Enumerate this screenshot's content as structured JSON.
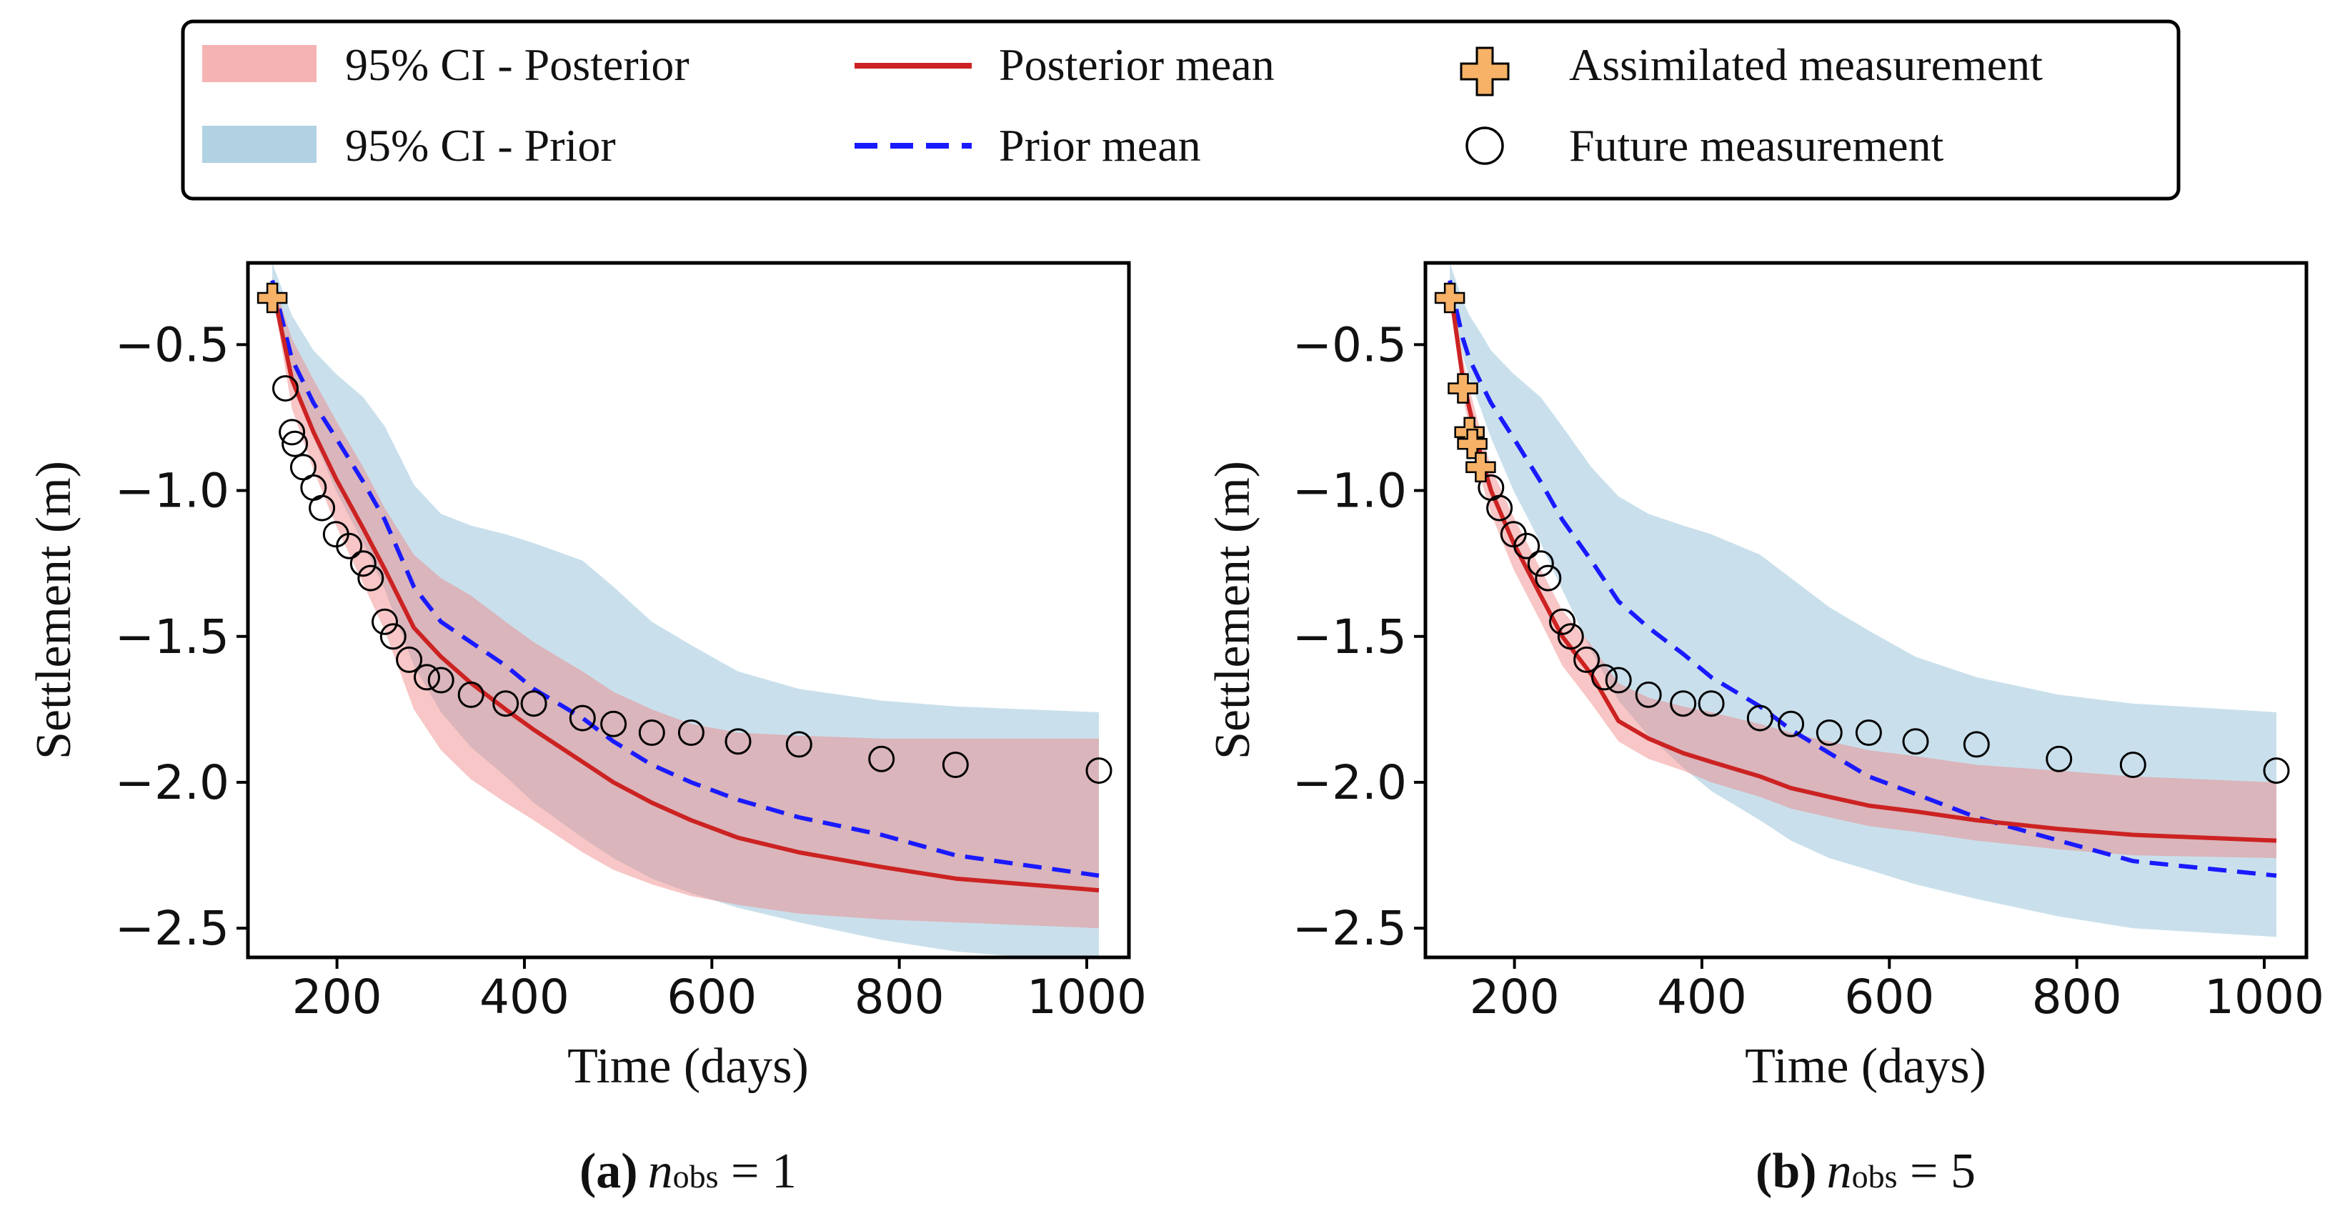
{
  "legend": {
    "ci_posterior": "95% CI - Posterior",
    "ci_prior": "95% CI - Prior",
    "posterior_mean": "Posterior mean",
    "prior_mean": "Prior mean",
    "assimilated": "Assimilated measurement",
    "future": "Future measurement"
  },
  "colors": {
    "posterior_line": "#cc2222",
    "prior_line": "#1a1aff",
    "posterior_band": "#f08080",
    "prior_band": "#9cc7dc",
    "assimilated_marker": "#f7b267"
  },
  "chart_data": [
    {
      "type": "line",
      "caption_letter": "(a)",
      "caption_var": "n",
      "caption_sub": "obs",
      "caption_eq": " = 1",
      "xlabel": "Time (days)",
      "ylabel": "Settlement (m)",
      "xlim": [
        105,
        1045
      ],
      "ylim": [
        -2.6,
        -0.22
      ],
      "xticks": [
        200,
        400,
        600,
        800,
        1000
      ],
      "xtick_labels": [
        "200",
        "400",
        "600",
        "800",
        "1000"
      ],
      "yticks": [
        -0.5,
        -1.0,
        -1.5,
        -2.0,
        -2.5
      ],
      "ytick_labels": [
        "−0.5",
        "−1.0",
        "−1.5",
        "−2.0",
        "−2.5"
      ],
      "t": [
        131,
        152,
        175,
        199,
        228,
        251,
        282,
        311,
        343,
        380,
        410,
        462,
        495,
        536,
        578,
        628,
        693,
        781,
        860,
        1013
      ],
      "prior_mean": [
        -0.28,
        -0.55,
        -0.7,
        -0.82,
        -0.97,
        -1.1,
        -1.33,
        -1.45,
        -1.52,
        -1.6,
        -1.68,
        -1.78,
        -1.86,
        -1.94,
        -2.0,
        -2.06,
        -2.12,
        -2.18,
        -2.25,
        -2.32
      ],
      "prior_lower": [
        -0.34,
        -0.62,
        -0.82,
        -1.0,
        -1.18,
        -1.34,
        -1.6,
        -1.76,
        -1.88,
        -1.98,
        -2.07,
        -2.19,
        -2.26,
        -2.33,
        -2.38,
        -2.43,
        -2.48,
        -2.54,
        -2.58,
        -2.62
      ],
      "prior_upper": [
        -0.22,
        -0.4,
        -0.52,
        -0.6,
        -0.68,
        -0.78,
        -0.98,
        -1.08,
        -1.12,
        -1.15,
        -1.18,
        -1.24,
        -1.33,
        -1.45,
        -1.53,
        -1.62,
        -1.68,
        -1.72,
        -1.74,
        -1.76
      ],
      "posterior_mean": [
        -0.3,
        -0.62,
        -0.8,
        -0.96,
        -1.13,
        -1.27,
        -1.47,
        -1.57,
        -1.66,
        -1.75,
        -1.82,
        -1.93,
        -2.0,
        -2.07,
        -2.13,
        -2.19,
        -2.24,
        -2.29,
        -2.33,
        -2.37
      ],
      "posterior_lower": [
        -0.32,
        -0.72,
        -0.93,
        -1.12,
        -1.32,
        -1.48,
        -1.75,
        -1.89,
        -1.99,
        -2.07,
        -2.13,
        -2.24,
        -2.3,
        -2.35,
        -2.39,
        -2.42,
        -2.45,
        -2.47,
        -2.48,
        -2.5
      ],
      "posterior_upper": [
        -0.27,
        -0.48,
        -0.62,
        -0.76,
        -0.92,
        -1.06,
        -1.22,
        -1.3,
        -1.36,
        -1.45,
        -1.52,
        -1.62,
        -1.69,
        -1.75,
        -1.8,
        -1.83,
        -1.84,
        -1.85,
        -1.85,
        -1.85
      ],
      "assimilated": [
        [
          131,
          -0.34
        ]
      ],
      "future": [
        [
          145,
          -0.65
        ],
        [
          152,
          -0.8
        ],
        [
          155,
          -0.84
        ],
        [
          164,
          -0.92
        ],
        [
          175,
          -0.99
        ],
        [
          184,
          -1.06
        ],
        [
          199,
          -1.15
        ],
        [
          213,
          -1.19
        ],
        [
          228,
          -1.25
        ],
        [
          236,
          -1.3
        ],
        [
          251,
          -1.45
        ],
        [
          260,
          -1.5
        ],
        [
          277,
          -1.58
        ],
        [
          296,
          -1.64
        ],
        [
          311,
          -1.65
        ],
        [
          343,
          -1.7
        ],
        [
          380,
          -1.73
        ],
        [
          410,
          -1.73
        ],
        [
          462,
          -1.78
        ],
        [
          495,
          -1.8
        ],
        [
          536,
          -1.83
        ],
        [
          578,
          -1.83
        ],
        [
          628,
          -1.86
        ],
        [
          693,
          -1.87
        ],
        [
          781,
          -1.92
        ],
        [
          860,
          -1.94
        ],
        [
          1013,
          -1.96
        ]
      ]
    },
    {
      "type": "line",
      "caption_letter": "(b)",
      "caption_var": "n",
      "caption_sub": "obs",
      "caption_eq": " = 5",
      "xlabel": "Time (days)",
      "ylabel": "Settlement (m)",
      "xlim": [
        105,
        1045
      ],
      "ylim": [
        -2.6,
        -0.22
      ],
      "xticks": [
        200,
        400,
        600,
        800,
        1000
      ],
      "xtick_labels": [
        "200",
        "400",
        "600",
        "800",
        "1000"
      ],
      "yticks": [
        -0.5,
        -1.0,
        -1.5,
        -2.0,
        -2.5
      ],
      "ytick_labels": [
        "−0.5",
        "−1.0",
        "−1.5",
        "−2.0",
        "−2.5"
      ],
      "t": [
        131,
        145,
        152,
        164,
        175,
        199,
        228,
        251,
        282,
        311,
        343,
        380,
        410,
        462,
        495,
        536,
        578,
        628,
        693,
        781,
        860,
        1013
      ],
      "prior_mean": [
        -0.28,
        -0.48,
        -0.55,
        -0.63,
        -0.7,
        -0.82,
        -0.97,
        -1.1,
        -1.24,
        -1.38,
        -1.47,
        -1.56,
        -1.64,
        -1.74,
        -1.82,
        -1.9,
        -1.98,
        -2.04,
        -2.12,
        -2.2,
        -2.27,
        -2.32
      ],
      "prior_lower": [
        -0.34,
        -0.54,
        -0.62,
        -0.72,
        -0.82,
        -1.0,
        -1.18,
        -1.34,
        -1.55,
        -1.72,
        -1.84,
        -1.95,
        -2.03,
        -2.13,
        -2.2,
        -2.26,
        -2.3,
        -2.35,
        -2.4,
        -2.46,
        -2.5,
        -2.53
      ],
      "prior_upper": [
        -0.22,
        -0.35,
        -0.4,
        -0.46,
        -0.52,
        -0.6,
        -0.68,
        -0.78,
        -0.92,
        -1.02,
        -1.08,
        -1.12,
        -1.15,
        -1.22,
        -1.3,
        -1.4,
        -1.48,
        -1.57,
        -1.64,
        -1.7,
        -1.73,
        -1.76
      ],
      "posterior_mean": [
        -0.3,
        -0.62,
        -0.72,
        -0.88,
        -1.0,
        -1.18,
        -1.36,
        -1.5,
        -1.63,
        -1.79,
        -1.85,
        -1.9,
        -1.93,
        -1.98,
        -2.02,
        -2.05,
        -2.08,
        -2.1,
        -2.13,
        -2.16,
        -2.18,
        -2.2
      ],
      "posterior_lower": [
        -0.32,
        -0.68,
        -0.79,
        -0.96,
        -1.08,
        -1.27,
        -1.45,
        -1.6,
        -1.73,
        -1.86,
        -1.92,
        -1.96,
        -2.0,
        -2.05,
        -2.09,
        -2.12,
        -2.15,
        -2.17,
        -2.2,
        -2.23,
        -2.25,
        -2.26
      ],
      "posterior_upper": [
        -0.27,
        -0.55,
        -0.65,
        -0.8,
        -0.92,
        -1.09,
        -1.27,
        -1.41,
        -1.53,
        -1.66,
        -1.71,
        -1.74,
        -1.76,
        -1.8,
        -1.83,
        -1.86,
        -1.89,
        -1.91,
        -1.94,
        -1.96,
        -1.98,
        -2.0
      ],
      "assimilated": [
        [
          131,
          -0.34
        ],
        [
          145,
          -0.65
        ],
        [
          152,
          -0.8
        ],
        [
          155,
          -0.84
        ],
        [
          164,
          -0.92
        ]
      ],
      "future": [
        [
          175,
          -0.99
        ],
        [
          184,
          -1.06
        ],
        [
          199,
          -1.15
        ],
        [
          213,
          -1.19
        ],
        [
          228,
          -1.25
        ],
        [
          236,
          -1.3
        ],
        [
          251,
          -1.45
        ],
        [
          260,
          -1.5
        ],
        [
          277,
          -1.58
        ],
        [
          296,
          -1.64
        ],
        [
          311,
          -1.65
        ],
        [
          343,
          -1.7
        ],
        [
          380,
          -1.73
        ],
        [
          410,
          -1.73
        ],
        [
          462,
          -1.78
        ],
        [
          495,
          -1.8
        ],
        [
          536,
          -1.83
        ],
        [
          578,
          -1.83
        ],
        [
          628,
          -1.86
        ],
        [
          693,
          -1.87
        ],
        [
          781,
          -1.92
        ],
        [
          860,
          -1.94
        ],
        [
          1013,
          -1.96
        ]
      ]
    }
  ]
}
